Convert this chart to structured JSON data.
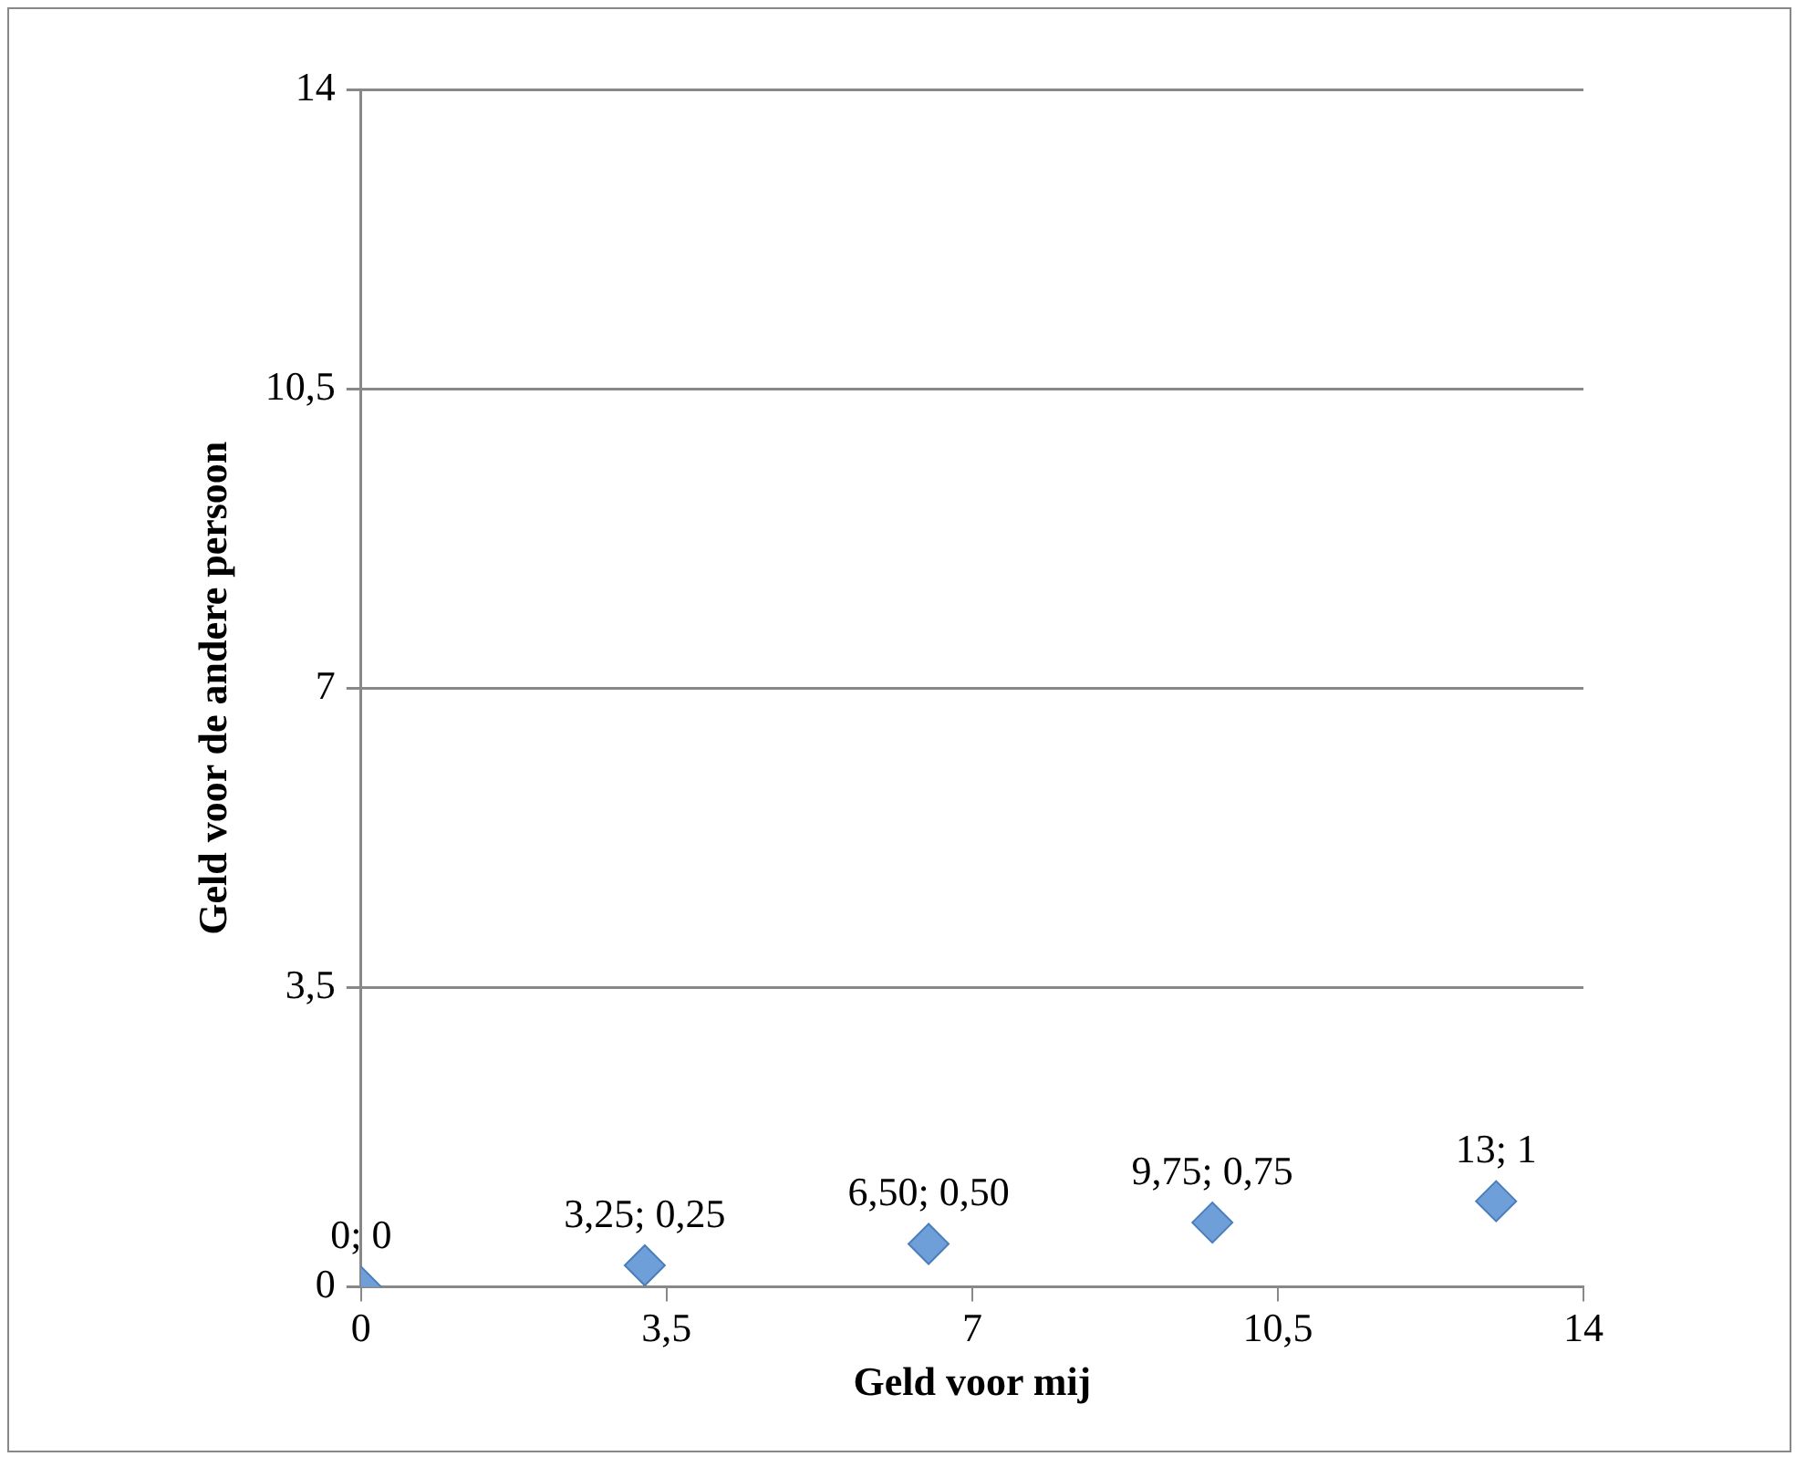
{
  "chart_data": {
    "type": "scatter",
    "xlabel": "Geld voor mij",
    "ylabel": "Geld voor de andere persoon",
    "series": [
      {
        "color": "#6f9fd8",
        "x": [
          0,
          3.25,
          6.5,
          9.75,
          13
        ],
        "values": [
          0,
          0.25,
          0.5,
          0.75,
          1
        ],
        "value_labels": [
          "0; 0",
          "3,25; 0,25",
          "6,50; 0,50",
          "9,75; 0,75",
          "13; 1"
        ]
      }
    ],
    "xlim": [
      0,
      14
    ],
    "ylim": [
      0,
      14
    ],
    "xticks": [
      0,
      {
        "value": 3.5,
        "label": "3,5"
      },
      7,
      {
        "value": 10.5,
        "label": "10,5"
      },
      14
    ],
    "yticks": [
      0,
      {
        "value": 3.5,
        "label": "3,5"
      },
      7,
      {
        "value": 10.5,
        "label": "10,5"
      },
      14
    ],
    "grid": "y",
    "legend": false,
    "marker": "diamond"
  }
}
